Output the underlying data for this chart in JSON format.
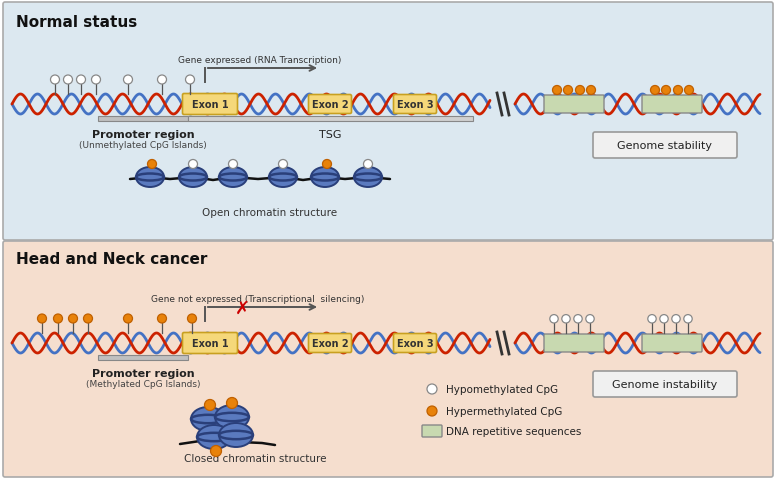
{
  "top_bg": "#dce8f0",
  "bottom_bg": "#f5dece",
  "border_color": "#aaaaaa",
  "title_normal": "Normal status",
  "title_cancer": "Head and Neck cancer",
  "exon_fill": "#f5d87a",
  "exon_border": "#c8a020",
  "dna_rep_fill": "#c8d9b0",
  "dna_rep_border": "#888888",
  "genome_stability_text": "Genome stability",
  "genome_instability_text": "Genome instability",
  "promoter_text": "Promoter region",
  "promoter_sub_normal": "(Unmethylated CpG Islands)",
  "promoter_sub_cancer": "(Methylated CpG Islands)",
  "tsg_text": "TSG",
  "gene_expressed_text": "Gene expressed (RNA Transcription)",
  "gene_silenced_text": "Gene not expressed (Transcriptional  silencing)",
  "open_chromatin_text": "Open chromatin structure",
  "closed_chromatin_text": "Closed chromatin structure",
  "legend_hypo": "Hypomethylated CpG",
  "legend_hyper": "Hypermethylated CpG",
  "legend_dna": "DNA repetitive sequences",
  "dna_blue": "#4472c4",
  "dna_red": "#cc2200",
  "histone_blue": "#5a7abf",
  "histone_dark": "#2a3f7a",
  "hypo_color": "#ffffff",
  "hyper_color": "#e8820a",
  "hypo_border": "#888888",
  "hyper_border": "#c06000"
}
